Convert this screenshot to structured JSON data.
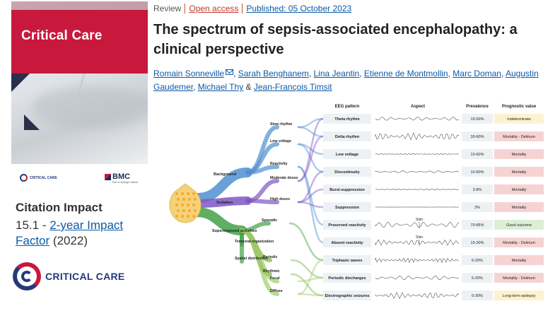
{
  "journal": {
    "cover_title": "Critical Care",
    "small_logo_text": "CRITICAL CARE",
    "publisher": "BMC",
    "publisher_sub": "Part of Springer Nature",
    "big_logo_text": "CRITICAL CARE"
  },
  "citation": {
    "heading": "Citation Impact",
    "value": "15.1",
    "dash": " - ",
    "link": "2-year Impact Factor",
    "year": " (2022)"
  },
  "article": {
    "type": "Review",
    "open_access": "Open access",
    "published": "Published: 05 October 2023",
    "title": "The spectrum of sepsis-associated encephalopathy: a clinical perspective",
    "authors": [
      "Romain Sonneville",
      "Sarah Benghanem",
      "Lina Jeantin",
      "Etienne de Montmollin",
      "Marc Doman",
      "Augustin Gaudemer",
      "Michael Thy",
      "Jean-François Timsit"
    ],
    "sep_comma": ", ",
    "sep_and": " & "
  },
  "figure": {
    "headers": [
      "EEG pattern",
      "Aspect",
      "Prevalence",
      "Prognostic value"
    ],
    "groups": [
      "Background",
      "Sedation",
      "Superimposed activities"
    ],
    "sub_nodes": [
      "Slow rhythm",
      "Low voltage",
      "Reactivity",
      "Moderate doses",
      "High doses",
      "Sporadic",
      "Temporal organization",
      "Periodic",
      "Rhythmic",
      "Spatial distribution",
      "Focal",
      "Diffuse"
    ],
    "stim_label": "Stim",
    "rows": [
      {
        "pattern": "Theta rhythm",
        "prevalence": "10-50%",
        "prognosis": "Indeterminate",
        "color": "#fdf2d0"
      },
      {
        "pattern": "Delta rhythm",
        "prevalence": "30-60%",
        "prognosis": "Mortality - Delirium",
        "color": "#f6d3d3"
      },
      {
        "pattern": "Low voltage",
        "prevalence": "10-60%",
        "prognosis": "Mortality",
        "color": "#f6d3d3"
      },
      {
        "pattern": "Discontinuity",
        "prevalence": "10-60%",
        "prognosis": "Mortality",
        "color": "#f6d3d3"
      },
      {
        "pattern": "Burst-suppression",
        "prevalence": "3-8%",
        "prognosis": "Mortality",
        "color": "#f6d3d3"
      },
      {
        "pattern": "Suppression",
        "prevalence": "3%",
        "prognosis": "Mortality",
        "color": "#f6d3d3"
      },
      {
        "pattern": "Preserved reactivity",
        "prevalence": "70-85%",
        "prognosis": "Good outcome",
        "color": "#dcefd6"
      },
      {
        "pattern": "Absent reactivity",
        "prevalence": "15-30%",
        "prognosis": "Mortality - Delirium",
        "color": "#f6d3d3"
      },
      {
        "pattern": "Triphasic waves",
        "prevalence": "6-20%",
        "prognosis": "Mortality",
        "color": "#f6d3d3"
      },
      {
        "pattern": "Periodic discharges",
        "prevalence": "5-20%",
        "prognosis": "Mortality - Delirium",
        "color": "#f6d3d3"
      },
      {
        "pattern": "Electrographic seizures",
        "prevalence": "0-30%",
        "prognosis": "Long-term epilepsy",
        "color": "#fdf2d0"
      }
    ]
  },
  "colors": {
    "link": "#0c5aa6",
    "open_access": "#c0392b",
    "brand_red": "#c8193d",
    "brand_navy": "#243a7a"
  }
}
